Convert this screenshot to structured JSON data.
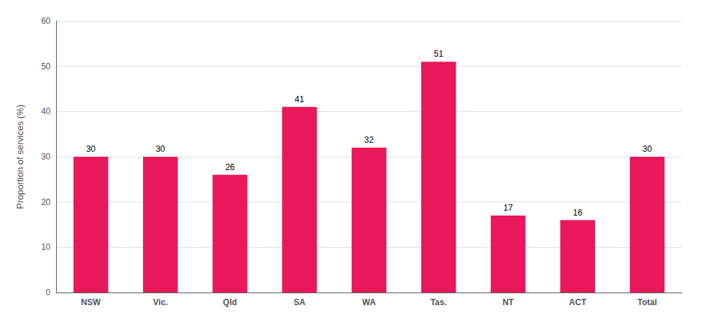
{
  "chart_data": {
    "type": "bar",
    "categories": [
      "NSW",
      "Vic.",
      "Qld",
      "SA",
      "WA",
      "Tas.",
      "NT",
      "ACT",
      "Total"
    ],
    "values": [
      30,
      30,
      26,
      41,
      32,
      51,
      17,
      16,
      30
    ],
    "color": "#E8185A",
    "ylabel": "Proportion of services (%)",
    "ylim": [
      0,
      60
    ],
    "yticks": [
      0,
      10,
      20,
      30,
      40,
      50,
      60
    ],
    "grid": true,
    "data_labels": true
  }
}
